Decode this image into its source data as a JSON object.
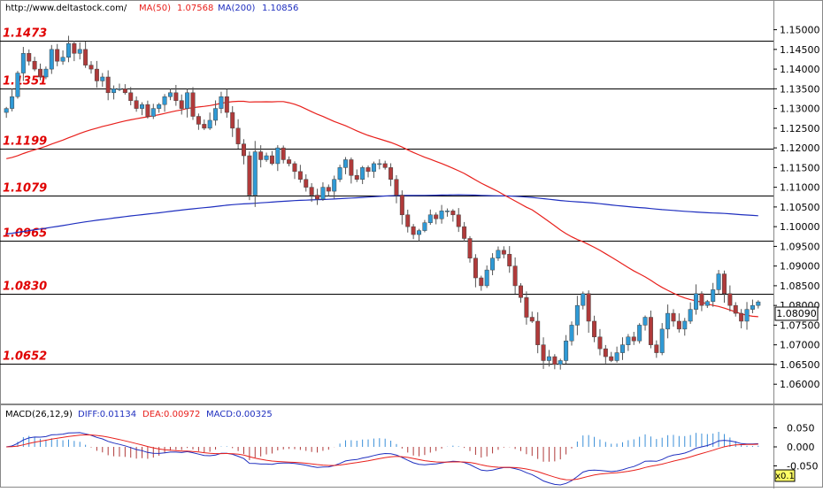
{
  "header": {
    "site": "http://www.deltastock.com/",
    "ma50_label": "MA(50)",
    "ma50_value": "1.07568",
    "ma200_label": "MA(200)",
    "ma200_value": "1.10856"
  },
  "colors": {
    "up": "#2f9ad6",
    "down": "#b03a3a",
    "ma50": "#e8201c",
    "ma200": "#1f2fbf",
    "level_text": "#e00000",
    "diff": "#1f2fbf",
    "dea": "#e8201c",
    "macd_pos": "#3a8fd8",
    "macd_neg": "#b03a3a"
  },
  "chart_data": [
    {
      "type": "candlestick",
      "grid": false,
      "ylim": [
        1.056,
        1.1535
      ],
      "y_ticks": [
        "1.15000",
        "1.14500",
        "1.14000",
        "1.13500",
        "1.13000",
        "1.12500",
        "1.12000",
        "1.11500",
        "1.11000",
        "1.10500",
        "1.10000",
        "1.09500",
        "1.09000",
        "1.08500",
        "1.08000",
        "1.07500",
        "1.07000",
        "1.06500",
        "1.06000"
      ],
      "current_price": "1.08090",
      "levels": [
        "1.1473",
        "1.1351",
        "1.1199",
        "1.1079",
        "1.0965",
        "1.0830",
        "1.0652"
      ],
      "closes": [
        1.13,
        1.133,
        1.139,
        1.144,
        1.142,
        1.14,
        1.138,
        1.14,
        1.145,
        1.142,
        1.143,
        1.1465,
        1.144,
        1.145,
        1.141,
        1.14,
        1.137,
        1.138,
        1.134,
        1.135,
        1.135,
        1.134,
        1.132,
        1.13,
        1.131,
        1.128,
        1.13,
        1.131,
        1.133,
        1.134,
        1.132,
        1.13,
        1.134,
        1.128,
        1.126,
        1.125,
        1.127,
        1.13,
        1.133,
        1.129,
        1.125,
        1.121,
        1.118,
        1.108,
        1.119,
        1.117,
        1.118,
        1.116,
        1.12,
        1.117,
        1.116,
        1.114,
        1.112,
        1.11,
        1.108,
        1.107,
        1.11,
        1.109,
        1.112,
        1.115,
        1.117,
        1.113,
        1.112,
        1.115,
        1.114,
        1.116,
        1.116,
        1.115,
        1.112,
        1.108,
        1.103,
        1.1,
        1.098,
        1.099,
        1.101,
        1.103,
        1.102,
        1.104,
        1.104,
        1.103,
        1.1,
        1.097,
        1.092,
        1.087,
        1.085,
        1.089,
        1.092,
        1.094,
        1.093,
        1.09,
        1.085,
        1.082,
        1.077,
        1.076,
        1.07,
        1.066,
        1.067,
        1.065,
        1.066,
        1.071,
        1.075,
        1.08,
        1.083,
        1.076,
        1.072,
        1.069,
        1.067,
        1.066,
        1.068,
        1.07,
        1.072,
        1.071,
        1.075,
        1.077,
        1.07,
        1.068,
        1.074,
        1.078,
        1.076,
        1.074,
        1.076,
        1.079,
        1.083,
        1.08,
        1.081,
        1.084,
        1.088,
        1.083,
        1.08,
        1.078,
        1.076,
        1.079,
        1.08,
        1.0809
      ]
    },
    {
      "type": "macd",
      "title": "MACD(26,12,9)",
      "diff_label": "DIFF:0.01134",
      "dea_label": "DEA:0.00972",
      "macd_label": "MACD:0.00325",
      "ylim": [
        -0.1,
        0.1
      ],
      "y_ticks": [
        "0.050",
        "0.000",
        "-0.050"
      ],
      "scale_label": "x0.1"
    }
  ]
}
